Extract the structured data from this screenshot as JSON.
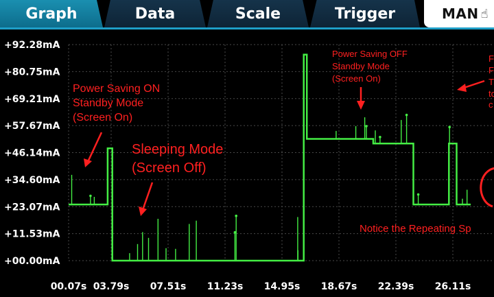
{
  "tabs": [
    {
      "label": "Graph",
      "active": true
    },
    {
      "label": "Data",
      "active": false
    },
    {
      "label": "Scale",
      "active": false
    },
    {
      "label": "Trigger",
      "active": false
    }
  ],
  "mode": {
    "label": "MAN",
    "icon": "hand-pointer-icon"
  },
  "colors": {
    "trace": "#44ee44",
    "annotation": "#ff2020",
    "accent": "#1e9fc8",
    "grid": "#4a4a4a"
  },
  "chart_data": {
    "type": "line",
    "y_ticks": [
      "+92.28mA",
      "+80.75mA",
      "+69.21mA",
      "+57.67mA",
      "+46.14mA",
      "+34.60mA",
      "+23.07mA",
      "+11.53mA",
      "+00.00mA"
    ],
    "x_ticks": [
      "00.07s",
      "03.79s",
      "07.51s",
      "11.23s",
      "14.95s",
      "18.67s",
      "22.39s",
      "26.11s"
    ],
    "ylim": [
      0,
      92.28
    ],
    "xlim": [
      0.07,
      26.11
    ],
    "grid": "dotted",
    "series": [
      {
        "values_mA_by_segment": [
          {
            "t0": 0.07,
            "t1": 2.6,
            "level": 24
          },
          {
            "t0": 2.6,
            "t1": 2.9,
            "level": 48
          },
          {
            "t0": 2.9,
            "t1": 15.3,
            "level": 0
          },
          {
            "t0": 15.3,
            "t1": 15.5,
            "level": 88
          },
          {
            "t0": 15.5,
            "t1": 19.8,
            "level": 52
          },
          {
            "t0": 19.8,
            "t1": 22.4,
            "level": 50
          },
          {
            "t0": 22.4,
            "t1": 24.7,
            "level": 24
          },
          {
            "t0": 24.7,
            "t1": 25.2,
            "level": 50
          },
          {
            "t0": 25.2,
            "t1": 26.11,
            "level": 24
          }
        ]
      }
    ]
  },
  "annotations": [
    {
      "lines": [
        "Power Saving ON",
        "Standby Mode",
        "(Screen On)"
      ]
    },
    {
      "lines": [
        "Sleeping Mode",
        "(Screen Off)"
      ]
    },
    {
      "lines": [
        "Power Saving OFF",
        "Standby Mode",
        "(Screen On)"
      ]
    },
    {
      "lines": [
        "F",
        "F",
        "T",
        "to",
        "c"
      ]
    },
    {
      "lines": [
        "Notice the Repeating Sp"
      ]
    }
  ]
}
